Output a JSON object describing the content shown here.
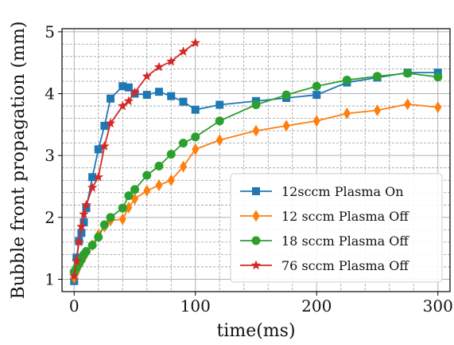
{
  "chart_data": {
    "type": "line",
    "title": "",
    "xlabel": "time(ms)",
    "ylabel": "Bubble front propagation (mm)",
    "xlim": [
      -10,
      310
    ],
    "ylim": [
      0.8,
      5.05
    ],
    "x_ticks": [
      0,
      100,
      200,
      300
    ],
    "y_ticks": [
      1,
      2,
      3,
      4,
      5
    ],
    "x_tick_labels": [
      "0",
      "100",
      "200",
      "300"
    ],
    "y_tick_labels": [
      "1",
      "2",
      "3",
      "4",
      "5"
    ],
    "grid": true,
    "minor_grid": true,
    "legend_position": "lower-right",
    "series": [
      {
        "name": "12sccm Plasma On",
        "color": "#1f77b4",
        "marker": "square",
        "x": [
          0,
          2,
          4,
          6,
          8,
          10,
          15,
          20,
          25,
          30,
          40,
          45,
          50,
          60,
          70,
          80,
          90,
          100,
          120,
          150,
          175,
          200,
          225,
          250,
          275,
          300
        ],
        "y": [
          0.97,
          1.35,
          1.62,
          1.75,
          1.92,
          2.15,
          2.65,
          3.1,
          3.48,
          3.92,
          4.12,
          4.1,
          4.0,
          3.98,
          4.03,
          3.96,
          3.87,
          3.74,
          3.82,
          3.88,
          3.93,
          3.98,
          4.18,
          4.26,
          4.34,
          4.34
        ]
      },
      {
        "name": "12 sccm Plasma Off",
        "color": "#ff7f0e",
        "marker": "diamond",
        "x": [
          0,
          2,
          4,
          6,
          8,
          10,
          15,
          20,
          25,
          30,
          40,
          45,
          50,
          60,
          70,
          80,
          90,
          100,
          120,
          150,
          175,
          200,
          225,
          250,
          275,
          300
        ],
        "y": [
          1.02,
          1.12,
          1.22,
          1.28,
          1.35,
          1.42,
          1.55,
          1.72,
          1.85,
          1.95,
          1.97,
          2.16,
          2.3,
          2.43,
          2.52,
          2.6,
          2.82,
          3.1,
          3.25,
          3.4,
          3.48,
          3.56,
          3.68,
          3.73,
          3.83,
          3.78
        ]
      },
      {
        "name": "18 sccm Plasma Off",
        "color": "#2ca02c",
        "marker": "circle",
        "x": [
          0,
          2,
          4,
          6,
          8,
          10,
          15,
          20,
          25,
          30,
          40,
          45,
          50,
          60,
          70,
          80,
          90,
          100,
          120,
          150,
          175,
          200,
          225,
          250,
          275,
          300
        ],
        "y": [
          1.12,
          1.18,
          1.25,
          1.32,
          1.4,
          1.45,
          1.55,
          1.68,
          1.88,
          2.0,
          2.15,
          2.35,
          2.45,
          2.68,
          2.83,
          3.02,
          3.2,
          3.3,
          3.56,
          3.82,
          3.98,
          4.12,
          4.22,
          4.28,
          4.33,
          4.27
        ]
      },
      {
        "name": "76 sccm Plasma Off",
        "color": "#d62728",
        "marker": "star",
        "x": [
          0,
          2,
          4,
          6,
          8,
          10,
          15,
          20,
          25,
          30,
          40,
          45,
          50,
          60,
          70,
          80,
          90,
          100
        ],
        "y": [
          1.05,
          1.3,
          1.6,
          1.85,
          2.05,
          2.2,
          2.48,
          2.65,
          3.15,
          3.52,
          3.8,
          3.88,
          4.02,
          4.28,
          4.43,
          4.52,
          4.68,
          4.82
        ]
      }
    ]
  }
}
